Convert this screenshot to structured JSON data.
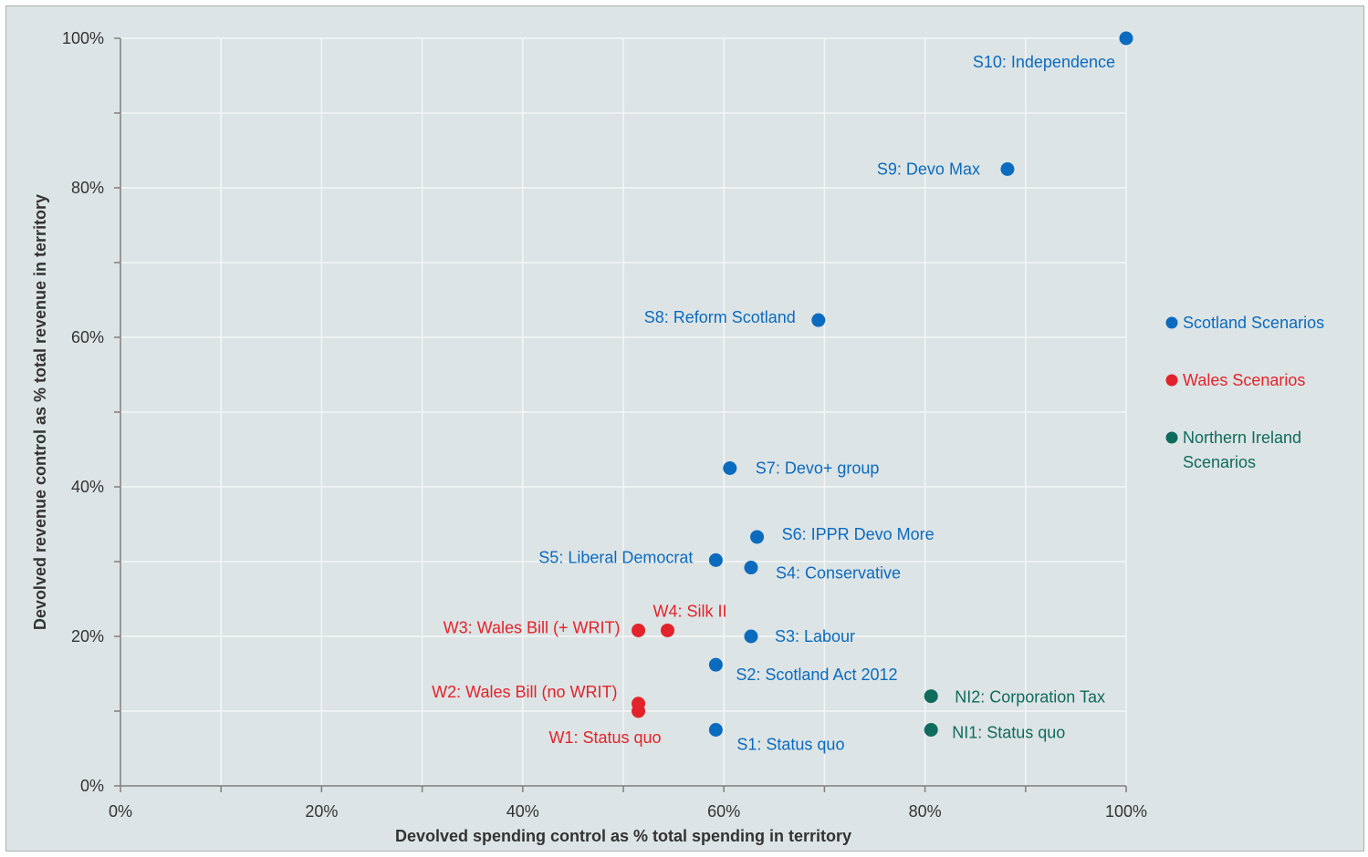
{
  "chart_data": {
    "type": "scatter",
    "xlabel": "Devolved spending control as % total spending in territory",
    "ylabel": "Devolved revenue control as % total revenue in territory",
    "xlim": [
      0,
      100
    ],
    "ylim": [
      0,
      100
    ],
    "x_ticks": [
      "0%",
      "20%",
      "40%",
      "60%",
      "80%",
      "100%"
    ],
    "y_ticks": [
      "0%",
      "20%",
      "40%",
      "60%",
      "80%",
      "100%"
    ],
    "grid": true,
    "legend_position": "right",
    "colors": {
      "scotland": "#0b6bbf",
      "wales": "#e2232b",
      "ni": "#0f6b5c"
    },
    "series": [
      {
        "key": "scotland",
        "name": "Scotland Scenarios",
        "color": "#0b6bbf",
        "points": [
          {
            "label": "S1: Status quo",
            "x": 59.2,
            "y": 7.5,
            "anchor": "start"
          },
          {
            "label": "S2: Scotland Act 2012",
            "x": 59.2,
            "y": 16.2,
            "anchor": "start"
          },
          {
            "label": "S3: Labour",
            "x": 62.7,
            "y": 20.0,
            "anchor": "start"
          },
          {
            "label": "S4: Conservative",
            "x": 62.7,
            "y": 29.2,
            "anchor": "start"
          },
          {
            "label": "S5: Liberal Democrat",
            "x": 59.2,
            "y": 30.2,
            "anchor": "end"
          },
          {
            "label": "S6: IPPR Devo More",
            "x": 63.3,
            "y": 33.3,
            "anchor": "start"
          },
          {
            "label": "S7: Devo+ group",
            "x": 60.6,
            "y": 42.5,
            "anchor": "start"
          },
          {
            "label": "S8: Reform Scotland",
            "x": 69.4,
            "y": 62.3,
            "anchor": "end"
          },
          {
            "label": "S9: Devo Max",
            "x": 88.2,
            "y": 82.5,
            "anchor": "end"
          },
          {
            "label": "S10: Independence",
            "x": 100.0,
            "y": 100.0,
            "anchor": "end"
          }
        ]
      },
      {
        "key": "wales",
        "name": "Wales Scenarios",
        "color": "#e2232b",
        "points": [
          {
            "label": "W1: Status quo",
            "x": 51.5,
            "y": 10.0,
            "anchor": "end"
          },
          {
            "label": "W2: Wales Bill (no WRIT)",
            "x": 51.5,
            "y": 11.0,
            "anchor": "end"
          },
          {
            "label": "W3: Wales Bill (+ WRIT)",
            "x": 51.5,
            "y": 20.8,
            "anchor": "end"
          },
          {
            "label": "W4: Silk II",
            "x": 54.4,
            "y": 20.8,
            "anchor": "start"
          }
        ]
      },
      {
        "key": "ni",
        "name": "Northern Ireland Scenarios",
        "color": "#0f6b5c",
        "points": [
          {
            "label": "NI1: Status quo",
            "x": 80.6,
            "y": 7.5,
            "anchor": "start"
          },
          {
            "label": "NI2: Corporation Tax",
            "x": 80.6,
            "y": 12.0,
            "anchor": "start"
          }
        ]
      }
    ],
    "legend": [
      {
        "key": "scotland",
        "lines": [
          "Scotland Scenarios"
        ]
      },
      {
        "key": "wales",
        "lines": [
          "Wales Scenarios"
        ]
      },
      {
        "key": "ni",
        "lines": [
          "Northern Ireland",
          "Scenarios"
        ]
      }
    ]
  }
}
